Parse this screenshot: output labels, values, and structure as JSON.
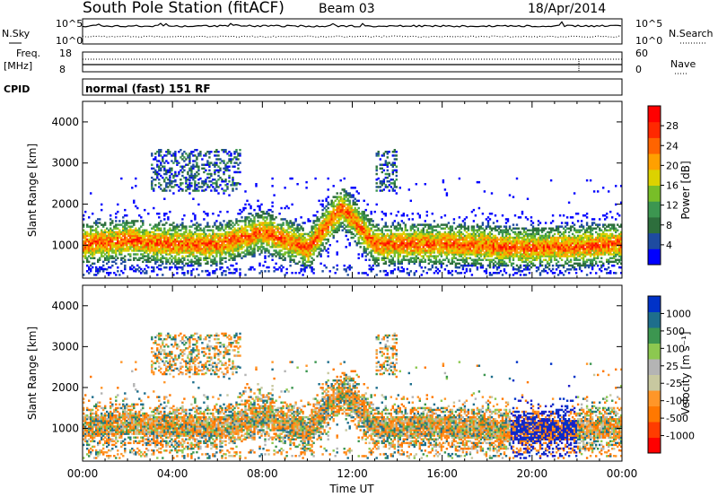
{
  "header": {
    "station": "South Pole Station (fitACF)",
    "beam": "Beam 03",
    "date": "18/Apr/2014"
  },
  "noise_panel": {
    "left_label": "N.Sky",
    "left_ticks": [
      "10^5",
      "10^0"
    ],
    "right_ticks": [
      "10^5",
      "10^0"
    ],
    "right_label": "N.Search"
  },
  "freq_panel": {
    "left_label_1": "Freq.",
    "left_label_2": "[MHz]",
    "left_ticks": [
      "18",
      "8"
    ],
    "right_ticks": [
      "60",
      "0"
    ],
    "right_label": "Nave"
  },
  "cpid": {
    "label": "CPID",
    "value": "normal (fast) 151 RF"
  },
  "colors": {
    "power_scale": [
      "#0000ff",
      "#1e4ba0",
      "#2d6e3c",
      "#3c9650",
      "#78be28",
      "#dcd200",
      "#ffa000",
      "#ff6400",
      "#ff2800",
      "#ff0000"
    ],
    "velocity_scale": [
      "#ff0000",
      "#ff3c00",
      "#ff7800",
      "#ff9628",
      "#c8c8a0",
      "#b4b4b4",
      "#8cc850",
      "#3c9650",
      "#1e6e8c",
      "#0032c8",
      "#1e1ec8"
    ]
  },
  "chart_data": [
    {
      "type": "heatmap",
      "name": "power",
      "ylabel": "Slant Range [km]",
      "yticks": [
        "1000",
        "2000",
        "3000",
        "4000"
      ],
      "ylim": [
        200,
        4500
      ],
      "xlim": [
        0,
        24
      ],
      "colorbar_label": "Power [dB]",
      "colorbar_ticks": [
        "4",
        "8",
        "12",
        "16",
        "20",
        "24",
        "28"
      ],
      "main_band": [
        {
          "x": 0,
          "y": 1000
        },
        {
          "x": 2,
          "y": 1100
        },
        {
          "x": 4,
          "y": 1000
        },
        {
          "x": 6,
          "y": 1000
        },
        {
          "x": 8,
          "y": 1300
        },
        {
          "x": 10,
          "y": 900
        },
        {
          "x": 11.5,
          "y": 1900
        },
        {
          "x": 13,
          "y": 1000
        },
        {
          "x": 16,
          "y": 1000
        },
        {
          "x": 20,
          "y": 900
        },
        {
          "x": 24,
          "y": 1000
        }
      ]
    },
    {
      "type": "heatmap",
      "name": "velocity",
      "ylabel": "Slant Range [km]",
      "yticks": [
        "1000",
        "2000",
        "3000",
        "4000"
      ],
      "ylim": [
        200,
        4500
      ],
      "xlim": [
        0,
        24
      ],
      "xlabel": "Time UT",
      "xticks": [
        "00:00",
        "04:00",
        "08:00",
        "12:00",
        "16:00",
        "20:00",
        "00:00"
      ],
      "colorbar_label": "Velocity [m s⁻¹]",
      "colorbar_ticks": [
        "1000",
        "500",
        "100",
        "25",
        "-25",
        "-100",
        "-500",
        "-1000"
      ]
    }
  ]
}
